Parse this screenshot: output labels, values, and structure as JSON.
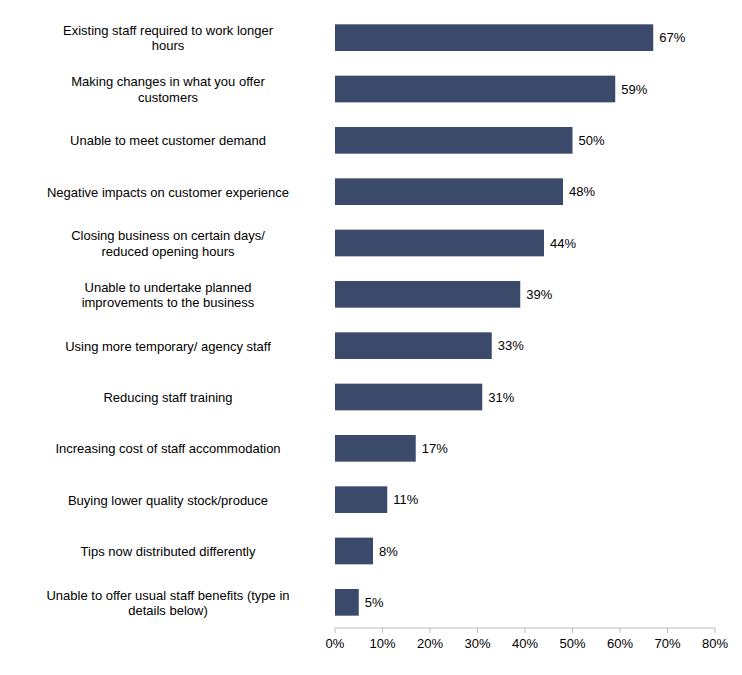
{
  "chart_data": {
    "type": "bar",
    "orientation": "horizontal",
    "categories": [
      "Unable to offer usual staff benefits (type in\ndetails below)",
      "Tips now distributed differently",
      "Buying lower quality stock/produce",
      "Increasing cost of staff accommodation",
      "Reducing staff training",
      "Using more temporary/ agency staff",
      "Unable to undertake planned\nimprovements to the business",
      "Closing business on certain days/\nreduced opening hours",
      "Negative impacts on customer experience",
      "Unable to meet customer demand",
      "Making changes in what you offer\ncustomers",
      "Existing staff required to work longer\nhours"
    ],
    "values": [
      5,
      8,
      11,
      17,
      31,
      33,
      39,
      44,
      48,
      50,
      59,
      67
    ],
    "value_labels": [
      "5%",
      "8%",
      "11%",
      "17%",
      "31%",
      "33%",
      "39%",
      "44%",
      "48%",
      "50%",
      "59%",
      "67%"
    ],
    "data_labels": true,
    "color": "#3b4a6b",
    "xlim": [
      0,
      80
    ],
    "xticks": [
      {
        "value": 0,
        "label": "0%"
      },
      {
        "value": 10,
        "label": "10%"
      },
      {
        "value": 20,
        "label": "20%"
      },
      {
        "value": 30,
        "label": "30%"
      },
      {
        "value": 40,
        "label": "40%"
      },
      {
        "value": 50,
        "label": "50%"
      },
      {
        "value": 60,
        "label": "60%"
      },
      {
        "value": 70,
        "label": "70%"
      },
      {
        "value": 80,
        "label": "80%"
      }
    ],
    "grid": false
  }
}
